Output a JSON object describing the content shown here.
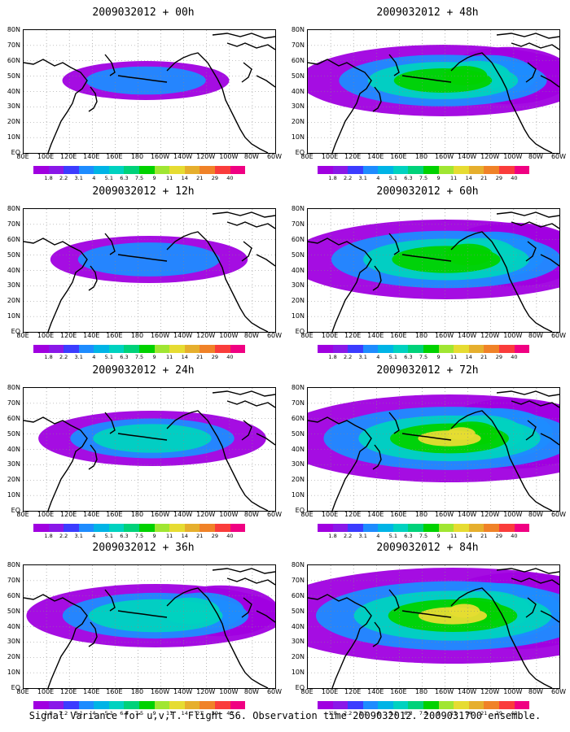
{
  "caption": "Signal Variance for u,v,T. Flight 56. Observation time 2009032012. 2009031700 ensemble.",
  "lat_labels": [
    "80N",
    "70N",
    "60N",
    "50N",
    "40N",
    "30N",
    "20N",
    "10N",
    "EQ"
  ],
  "lon_labels": [
    "80E",
    "100E",
    "120E",
    "140E",
    "160E",
    "180",
    "160W",
    "140W",
    "120W",
    "100W",
    "80W",
    "60W"
  ],
  "colorbar": {
    "labels": [
      "1.8",
      "2.2",
      "3.1",
      "4",
      "5.1",
      "6.3",
      "7.5",
      "9",
      "11",
      "14",
      "21",
      "29",
      "40"
    ],
    "colors": [
      "#a000e0",
      "#8a18e8",
      "#3c3cff",
      "#1e8cff",
      "#00b4e6",
      "#00d2c0",
      "#00d27a",
      "#00d200",
      "#a0e632",
      "#e6dc32",
      "#e6af2d",
      "#f08228",
      "#fa3c3c",
      "#f00082"
    ]
  },
  "panels": [
    {
      "id": "p00",
      "title": "2009032012 + 00h",
      "level": 0
    },
    {
      "id": "p12",
      "title": "2009032012 + 12h",
      "level": 1
    },
    {
      "id": "p24",
      "title": "2009032012 + 24h",
      "level": 2
    },
    {
      "id": "p36",
      "title": "2009032012 + 36h",
      "level": 3
    },
    {
      "id": "p48",
      "title": "2009032012 + 48h",
      "level": 4
    },
    {
      "id": "p60",
      "title": "2009032012 + 60h",
      "level": 5
    },
    {
      "id": "p72",
      "title": "2009032012 + 72h",
      "level": 6
    },
    {
      "id": "p84",
      "title": "2009032012 + 84h",
      "level": 7
    }
  ]
}
